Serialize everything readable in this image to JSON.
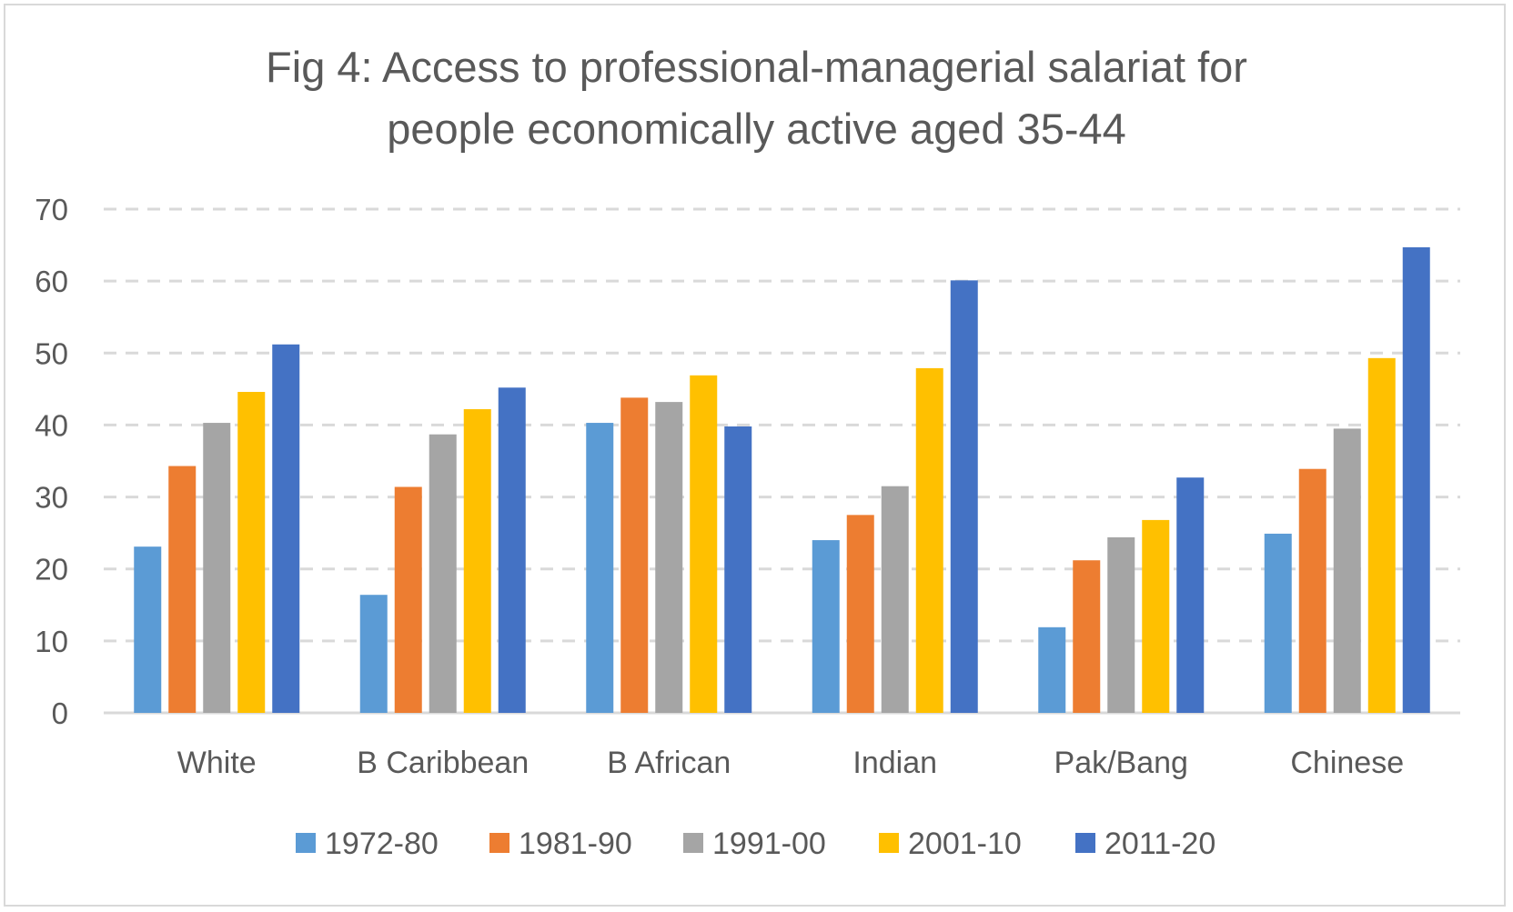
{
  "chart_data": {
    "type": "bar",
    "title": [
      "Fig 4: Access to professional-managerial salariat for",
      "people economically active aged 35-44"
    ],
    "xlabel": "",
    "ylabel": "",
    "ylim": [
      0,
      70
    ],
    "yticks": [
      0,
      10,
      20,
      30,
      40,
      50,
      60,
      70
    ],
    "grid": true,
    "legend_position": "bottom",
    "categories": [
      "White",
      "B Caribbean",
      "B African",
      "Indian",
      "Pak/Bang",
      "Chinese"
    ],
    "series": [
      {
        "name": "1972-80",
        "color": "#5b9bd5",
        "values": [
          23.1,
          16.4,
          40.3,
          24.0,
          11.9,
          24.9
        ]
      },
      {
        "name": "1981-90",
        "color": "#ed7d31",
        "values": [
          34.3,
          31.4,
          43.8,
          27.5,
          21.2,
          33.9
        ]
      },
      {
        "name": "1991-00",
        "color": "#a5a5a5",
        "values": [
          40.3,
          38.7,
          43.2,
          31.5,
          24.4,
          39.5
        ]
      },
      {
        "name": "2001-10",
        "color": "#ffc000",
        "values": [
          44.6,
          42.2,
          46.9,
          47.9,
          26.8,
          49.3
        ]
      },
      {
        "name": "2011-20",
        "color": "#4472c4",
        "values": [
          51.2,
          45.2,
          39.8,
          60.1,
          32.7,
          64.7
        ]
      }
    ]
  }
}
